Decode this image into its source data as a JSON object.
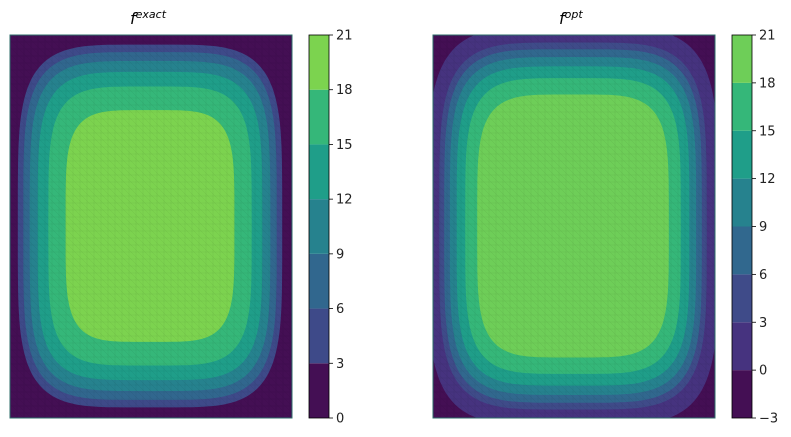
{
  "chart_data": [
    {
      "type": "heatmap",
      "title": "f",
      "title_superscript": "exact",
      "levels": [
        0,
        3,
        6,
        9,
        12,
        15,
        18,
        21
      ],
      "colorbar_ticks": [
        "0",
        "3",
        "6",
        "9",
        "12",
        "15",
        "18",
        "21"
      ],
      "colors": [
        "#440f54",
        "#3e4a89",
        "#31678e",
        "#26828e",
        "#1f9e89",
        "#35b779",
        "#7cd34f",
        "#d6e21b"
      ],
      "peak": 20.3,
      "offset": 0
    },
    {
      "type": "heatmap",
      "title": "f",
      "title_superscript": "opt",
      "levels": [
        -3,
        0,
        3,
        6,
        9,
        12,
        15,
        18,
        21
      ],
      "colorbar_ticks": [
        "−3",
        "0",
        "3",
        "6",
        "9",
        "12",
        "15",
        "18",
        "21"
      ],
      "colors": [
        "#440f54",
        "#46337f",
        "#3f4b89",
        "#31688e",
        "#26828e",
        "#1f9e89",
        "#35b779",
        "#6ece58",
        "#d6e21b"
      ],
      "peak": 21.5,
      "offset": 0.8
    }
  ]
}
